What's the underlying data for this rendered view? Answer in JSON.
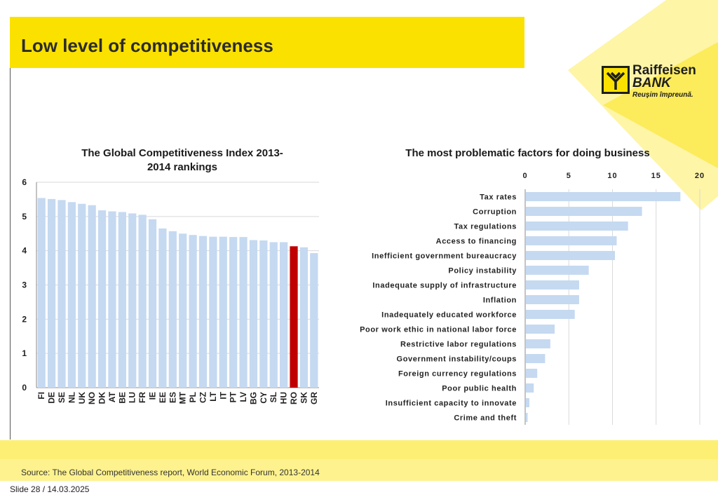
{
  "slide": {
    "title": "Low level of competitiveness",
    "source": "Source: The Global Competitiveness report, World Economic Forum, 2013-2014",
    "footer": "Slide 28 / 14.03.2025",
    "logo": {
      "line1": "Raiffeisen",
      "line2": "BANK",
      "tagline": "Reuşim împreună."
    },
    "colors": {
      "brand_yellow": "#fbe100",
      "bar_blue": "#c5d9f1",
      "highlight_red": "#c00000"
    }
  },
  "chart_data": [
    {
      "type": "bar",
      "title": "The Global Competitiveness Index 2013-2014 rankings",
      "title_lines": [
        "The Global Competitiveness Index 2013-",
        "2014 rankings"
      ],
      "categories": [
        "FI",
        "DE",
        "SE",
        "NL",
        "UK",
        "NO",
        "DK",
        "AT",
        "BE",
        "LU",
        "FR",
        "IE",
        "EE",
        "ES",
        "MT",
        "PL",
        "CZ",
        "LT",
        "IT",
        "PT",
        "LV",
        "BG",
        "CY",
        "SL",
        "HU",
        "RO",
        "SK",
        "GR"
      ],
      "values": [
        5.54,
        5.51,
        5.48,
        5.42,
        5.37,
        5.33,
        5.18,
        5.15,
        5.13,
        5.09,
        5.05,
        4.92,
        4.65,
        4.57,
        4.5,
        4.46,
        4.43,
        4.41,
        4.41,
        4.4,
        4.4,
        4.31,
        4.3,
        4.25,
        4.25,
        4.13,
        4.1,
        3.93
      ],
      "highlight": "RO",
      "ylim": [
        0,
        6
      ],
      "yticks": [
        "0",
        "1",
        "2",
        "3",
        "4",
        "5",
        "6"
      ],
      "grid": true
    },
    {
      "type": "bar",
      "orientation": "horizontal",
      "title": "The most problematic factors for doing business",
      "categories": [
        "Tax rates",
        "Corruption",
        "Tax regulations",
        "Access to financing",
        "Inefficient government bureaucracy",
        "Policy instability",
        "Inadequate supply of infrastructure",
        "Inflation",
        "Inadequately educated workforce",
        "Poor work ethic in national labor force",
        "Restrictive labor regulations",
        "Government instability/coups",
        "Foreign currency regulations",
        "Poor public health",
        "Insufficient capacity to innovate",
        "Crime and theft"
      ],
      "values": [
        17.7,
        13.3,
        11.7,
        10.4,
        10.2,
        7.2,
        6.1,
        6.1,
        5.6,
        3.3,
        2.8,
        2.2,
        1.3,
        0.9,
        0.4,
        0.2
      ],
      "xlim": [
        0,
        20
      ],
      "xticks": [
        "0",
        "5",
        "10",
        "15",
        "20"
      ],
      "grid": true
    }
  ]
}
